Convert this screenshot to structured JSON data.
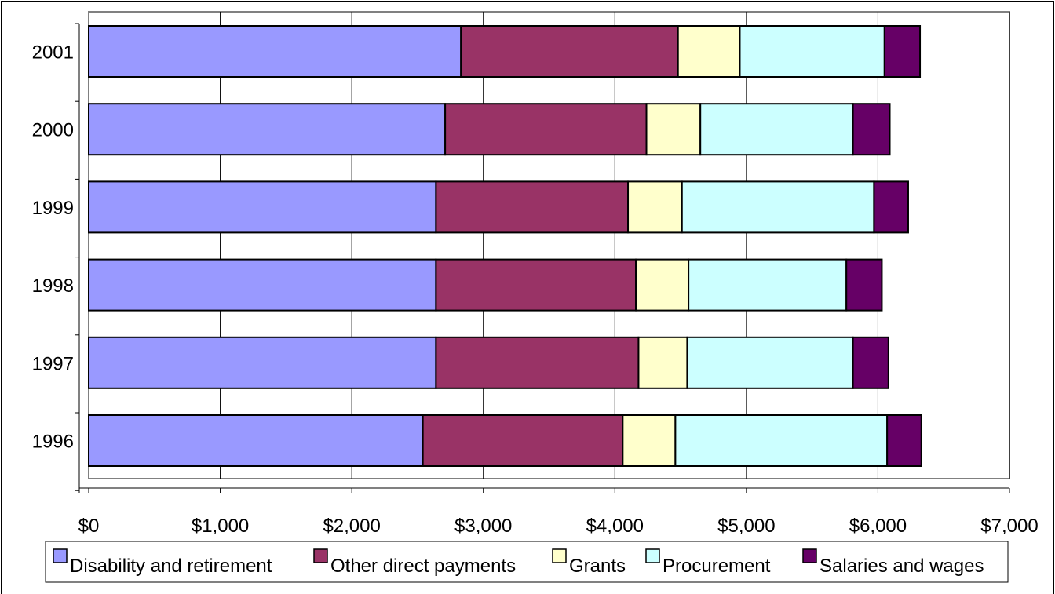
{
  "chart_data": {
    "type": "bar",
    "orientation": "horizontal",
    "stacked": true,
    "categories": [
      "1996",
      "1997",
      "1998",
      "1999",
      "2000",
      "2001"
    ],
    "series": [
      {
        "name": "Disability and retirement",
        "color": "#9999ff",
        "values": [
          2540,
          2640,
          2640,
          2640,
          2710,
          2830
        ]
      },
      {
        "name": "Other direct payments",
        "color": "#993366",
        "values": [
          1520,
          1540,
          1520,
          1460,
          1530,
          1650
        ]
      },
      {
        "name": "Grants",
        "color": "#ffffcc",
        "values": [
          400,
          370,
          400,
          410,
          410,
          470
        ]
      },
      {
        "name": "Procurement",
        "color": "#ccffff",
        "values": [
          1610,
          1260,
          1200,
          1460,
          1160,
          1100
        ]
      },
      {
        "name": "Salaries and wages",
        "color": "#660066",
        "values": [
          260,
          270,
          270,
          260,
          280,
          270
        ]
      }
    ],
    "x_ticks": [
      "$0",
      "$1,000",
      "$2,000",
      "$3,000",
      "$4,000",
      "$5,000",
      "$6,000",
      "$7,000"
    ],
    "xlim": [
      0,
      7000
    ],
    "title": "",
    "xlabel": "",
    "ylabel": "",
    "grid": "vertical",
    "legend_position": "bottom",
    "plot_area_border_color": "#808080",
    "gridline_color": "#000000"
  }
}
